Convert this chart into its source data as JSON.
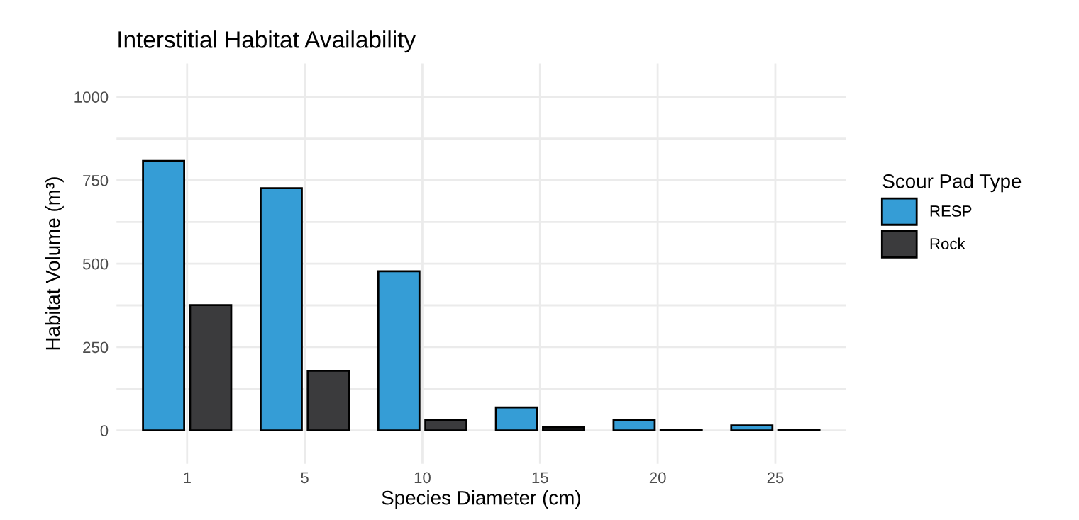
{
  "chart_data": {
    "type": "bar",
    "title": "Interstitial Habitat Availability",
    "xlabel": "Species Diameter (cm)",
    "ylabel": "Habitat Volume (m³)",
    "legend_title": "Scour Pad Type",
    "categories": [
      "1",
      "5",
      "10",
      "15",
      "20",
      "25"
    ],
    "series": [
      {
        "name": "RESP",
        "color": "#359dd6",
        "values": [
          808,
          726,
          477,
          69,
          32,
          15
        ]
      },
      {
        "name": "Rock",
        "color": "#3b3b3d",
        "values": [
          376,
          179,
          32,
          9,
          1,
          1
        ]
      }
    ],
    "ylim": [
      -100,
      1100
    ],
    "yticks": [
      0,
      {
        "value": 125,
        "label": null
      },
      250,
      {
        "value": 375,
        "label": null
      },
      500,
      {
        "value": 625,
        "label": null
      },
      750,
      {
        "value": 875,
        "label": null
      },
      1000
    ],
    "grid": true,
    "legend": "right"
  }
}
